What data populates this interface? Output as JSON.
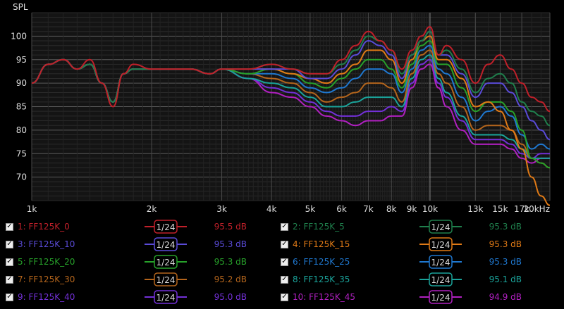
{
  "chart_data": {
    "type": "line",
    "ylabel": "SPL",
    "x_scale": "log",
    "xlim": [
      1000,
      20000
    ],
    "ylim": [
      65,
      105
    ],
    "y_ticks": [
      70,
      75,
      80,
      85,
      90,
      95,
      100
    ],
    "x_ticks": [
      {
        "v": 1000,
        "label": "1k"
      },
      {
        "v": 2000,
        "label": "2k"
      },
      {
        "v": 3000,
        "label": "3k"
      },
      {
        "v": 4000,
        "label": "4k"
      },
      {
        "v": 5000,
        "label": "5k"
      },
      {
        "v": 6000,
        "label": "6k"
      },
      {
        "v": 7000,
        "label": "7k"
      },
      {
        "v": 8000,
        "label": "8k"
      },
      {
        "v": 9000,
        "label": "9k"
      },
      {
        "v": 10000,
        "label": "10k"
      },
      {
        "v": 13000,
        "label": "13k"
      },
      {
        "v": 15000,
        "label": "15k"
      },
      {
        "v": 17000,
        "label": "17k"
      },
      {
        "v": 20000,
        "label": "20kHz"
      }
    ],
    "grid": true,
    "x": [
      1000,
      1100,
      1200,
      1300,
      1400,
      1500,
      1600,
      1700,
      1800,
      2000,
      2200,
      2500,
      2800,
      3000,
      3500,
      4000,
      4500,
      5000,
      5500,
      6000,
      6500,
      7000,
      7500,
      8000,
      8500,
      9000,
      9500,
      10000,
      10500,
      11000,
      12000,
      13000,
      14000,
      15000,
      16000,
      17000,
      18000,
      19000,
      20000
    ],
    "series": [
      {
        "name": "1: FF125K_0",
        "color": "#c0202a",
        "smoothing": "1/24",
        "level": "95.5 dB",
        "values": [
          90,
          94,
          95,
          93,
          95,
          90,
          85,
          92,
          94,
          93,
          93,
          93,
          92,
          93,
          93,
          94,
          93,
          92,
          92,
          95,
          98,
          101,
          99,
          97,
          93,
          97,
          100,
          102,
          96,
          98,
          95,
          90,
          94,
          96,
          93,
          90,
          87,
          86,
          84
        ]
      },
      {
        "name": "2: FF125K_5",
        "color": "#1f7f4c",
        "smoothing": "1/24",
        "level": "95.3 dB",
        "values": [
          90,
          94,
          95,
          93,
          94,
          90,
          86,
          92,
          93,
          93,
          93,
          93,
          92,
          93,
          93,
          94,
          93,
          92,
          92,
          94,
          97,
          100,
          99,
          97,
          92,
          96,
          99,
          101,
          96,
          97,
          93,
          88,
          91,
          92,
          90,
          86,
          84,
          83,
          81
        ]
      },
      {
        "name": "3: FF125K_10",
        "color": "#5a4bd8",
        "smoothing": "1/24",
        "level": "95.3 dB",
        "values": [
          90,
          94,
          95,
          93,
          94,
          90,
          86,
          92,
          93,
          93,
          93,
          93,
          92,
          93,
          93,
          93,
          93,
          91,
          91,
          93,
          96,
          99,
          98,
          96,
          91,
          96,
          99,
          101,
          96,
          96,
          92,
          87,
          90,
          90,
          88,
          85,
          82,
          80,
          78
        ]
      },
      {
        "name": "4: FF125K_15",
        "color": "#e07a16",
        "smoothing": "1/24",
        "level": "95.3 dB",
        "values": [
          90,
          94,
          95,
          93,
          94,
          90,
          86,
          92,
          93,
          93,
          93,
          93,
          92,
          93,
          93,
          93,
          92,
          91,
          90,
          92,
          94,
          97,
          97,
          95,
          90,
          95,
          99,
          100,
          95,
          95,
          91,
          85,
          86,
          84,
          80,
          76,
          70,
          66,
          64
        ]
      },
      {
        "name": "5: FF125K_20",
        "color": "#27a12a",
        "smoothing": "1/24",
        "level": "95.3 dB",
        "values": [
          90,
          94,
          95,
          93,
          94,
          90,
          86,
          92,
          93,
          93,
          93,
          93,
          92,
          93,
          92,
          93,
          92,
          90,
          89,
          91,
          93,
          95,
          95,
          93,
          89,
          94,
          98,
          99,
          94,
          94,
          89,
          84,
          86,
          86,
          84,
          80,
          74,
          73,
          72
        ]
      },
      {
        "name": "6: FF125K_25",
        "color": "#1f78d0",
        "smoothing": "1/24",
        "level": "95.3 dB",
        "values": [
          90,
          94,
          95,
          93,
          94,
          90,
          86,
          92,
          93,
          93,
          93,
          93,
          92,
          93,
          92,
          92,
          91,
          89,
          88,
          89,
          91,
          93,
          93,
          92,
          88,
          93,
          97,
          98,
          93,
          92,
          87,
          82,
          84,
          85,
          83,
          79,
          76,
          77,
          76
        ]
      },
      {
        "name": "7: FF125K_30",
        "color": "#b4651c",
        "smoothing": "1/24",
        "level": "95.2 dB",
        "values": [
          90,
          94,
          95,
          93,
          94,
          90,
          86,
          92,
          93,
          93,
          93,
          93,
          92,
          93,
          92,
          91,
          90,
          88,
          86,
          87,
          88,
          90,
          90,
          89,
          86,
          92,
          96,
          97,
          92,
          90,
          85,
          80,
          81,
          81,
          80,
          77,
          74,
          73,
          72
        ]
      },
      {
        "name": "8: FF125K_35",
        "color": "#1aa39a",
        "smoothing": "1/24",
        "level": "95.1 dB",
        "values": [
          90,
          94,
          95,
          93,
          94,
          90,
          86,
          92,
          93,
          93,
          93,
          93,
          92,
          93,
          91,
          90,
          89,
          87,
          85,
          85,
          86,
          87,
          87,
          87,
          85,
          91,
          95,
          96,
          91,
          88,
          83,
          79,
          79,
          79,
          78,
          76,
          74,
          74,
          74
        ]
      },
      {
        "name": "9: FF125K_40",
        "color": "#7330d8",
        "smoothing": "1/24",
        "level": "95.0 dB",
        "values": [
          90,
          94,
          95,
          93,
          94,
          90,
          86,
          92,
          93,
          93,
          93,
          93,
          92,
          93,
          91,
          89,
          88,
          86,
          84,
          83,
          83,
          84,
          84,
          85,
          84,
          90,
          94,
          95,
          90,
          87,
          82,
          78,
          78,
          78,
          77,
          75,
          74,
          75,
          75
        ]
      },
      {
        "name": "10: FF125K_45",
        "color": "#b020c0",
        "smoothing": "1/24",
        "level": "94.9 dB",
        "values": [
          90,
          94,
          95,
          93,
          94,
          90,
          86,
          92,
          93,
          93,
          93,
          93,
          92,
          93,
          91,
          88,
          87,
          85,
          83,
          82,
          81,
          82,
          82,
          83,
          83,
          89,
          93,
          94,
          89,
          85,
          80,
          77,
          77,
          77,
          76,
          74,
          73,
          74,
          74
        ]
      }
    ]
  }
}
